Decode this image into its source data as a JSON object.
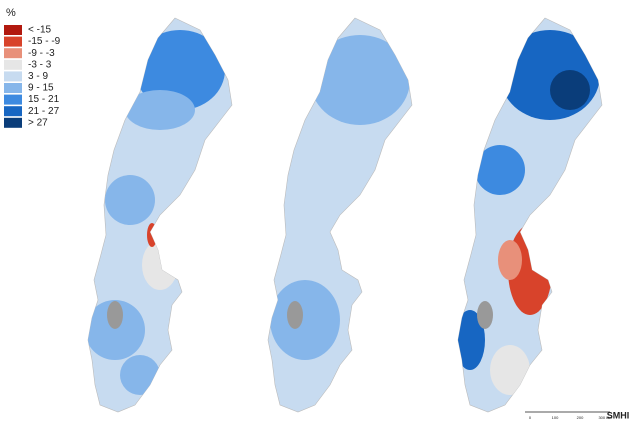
{
  "legend": {
    "title": "%",
    "items": [
      {
        "label": "< -15",
        "color": "#b2190f"
      },
      {
        "label": "-15 - -9",
        "color": "#d8432b"
      },
      {
        "label": "-9 - -3",
        "color": "#e8907a"
      },
      {
        "label": "-3 - 3",
        "color": "#e6e6e6"
      },
      {
        "label": "3 - 9",
        "color": "#c7dbf0"
      },
      {
        "label": "9 - 15",
        "color": "#86b6ea"
      },
      {
        "label": "15 - 21",
        "color": "#3d8ae0"
      },
      {
        "label": "21 - 27",
        "color": "#1766c2"
      },
      {
        "label": "> 27",
        "color": "#0a3d7a"
      }
    ]
  },
  "scale_bar": [
    "0",
    "100",
    "200",
    "300 km"
  ],
  "logo": "SMHI"
}
